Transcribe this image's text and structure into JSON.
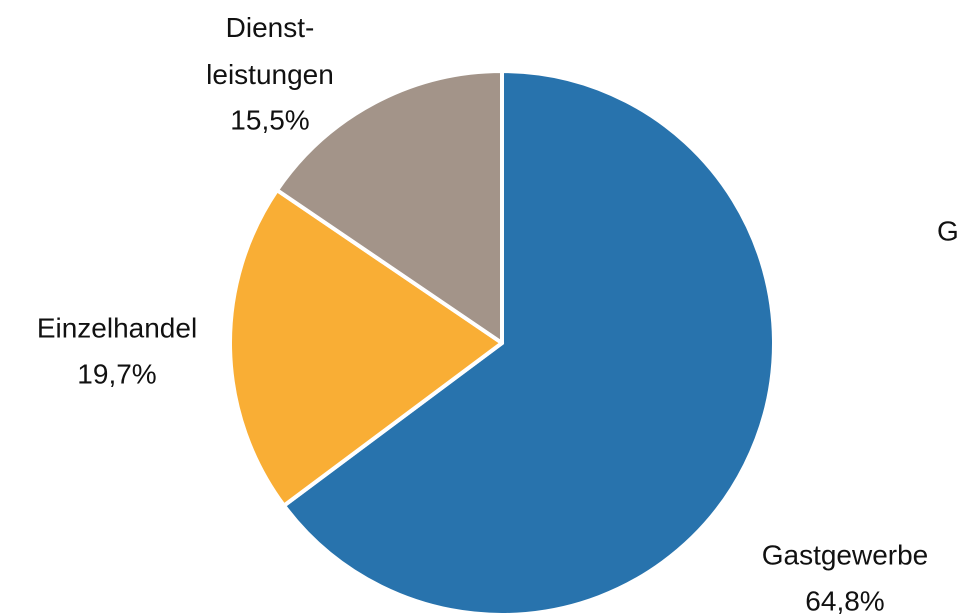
{
  "chart_data": {
    "type": "pie",
    "categories": [
      "Gastgewerbe",
      "Einzelhandel",
      "Dienst-\nleistungen"
    ],
    "values": [
      64.8,
      19.7,
      15.5
    ],
    "value_labels": [
      "64,8%",
      "19,7%",
      "15,5%"
    ],
    "colors": [
      "#2873ad",
      "#f9ae35",
      "#a39489"
    ],
    "annotation": "G"
  }
}
